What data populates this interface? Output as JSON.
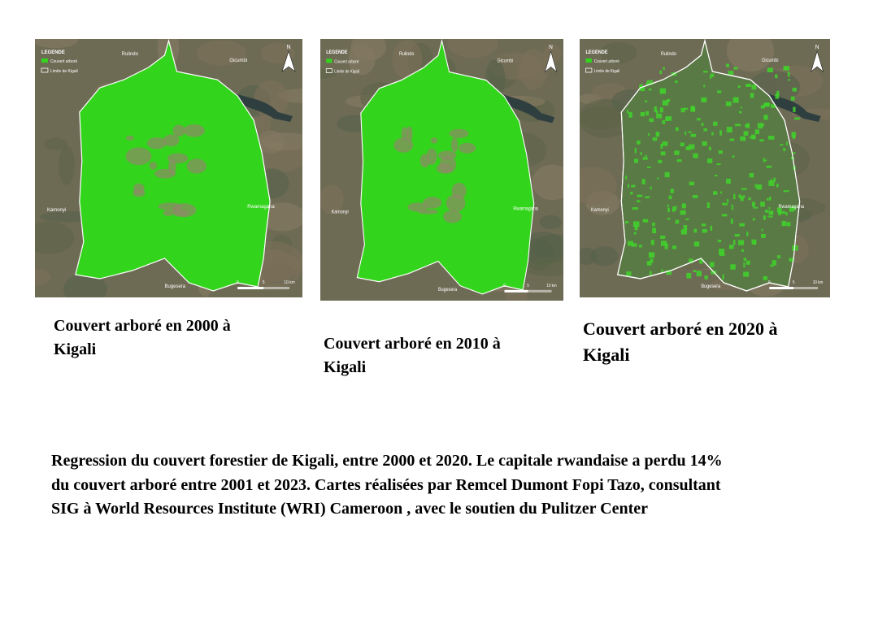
{
  "maps": [
    {
      "legend_title": "LEGENDE",
      "legend_items": [
        "Couvert arboré",
        "Limite de Kigali"
      ],
      "places": [
        "Rulindo",
        "Gicumbi",
        "Kamonyi",
        "Rwamagana",
        "Bugesera"
      ],
      "scale": [
        "0",
        "5",
        "10 km"
      ],
      "north": "N",
      "caption": [
        "Couvert arboré en 2000 à",
        "Kigali"
      ]
    },
    {
      "legend_title": "LEGENDE",
      "legend_items": [
        "Couvert arboré",
        "Limite de Kigali"
      ],
      "places": [
        "Rulindo",
        "Gicumbi",
        "Kamonyi",
        "Rwamagana",
        "Bugesera"
      ],
      "scale": [
        "0",
        "5",
        "10 km"
      ],
      "north": "N",
      "caption": [
        "Couvert arboré en 2010 à",
        "Kigali"
      ]
    },
    {
      "legend_title": "LEGENDE",
      "legend_items": [
        "Couvert arboré",
        "Limite de Kigali"
      ],
      "places": [
        "Rulindo",
        "Gicumbi",
        "Kamonyi",
        "Rwamagana",
        "Bugesera"
      ],
      "scale": [
        "0",
        "5",
        "10 km"
      ],
      "north": "N",
      "caption": [
        "Couvert arboré en 2020 à",
        "Kigali"
      ]
    }
  ],
  "paragraph_lines": [
    "Regression du couvert forestier de Kigali, entre 2000 et 2020. Le capitale rwandaise a perdu 14%",
    "du couvert arboré entre 2001 et 2023.  Cartes réalisées par Remcel Dumont Fopi Tazo, consultant",
    "SIG à World Resources Institute (WRI) Cameroon , avec le soutien du Pulitzer Center"
  ]
}
